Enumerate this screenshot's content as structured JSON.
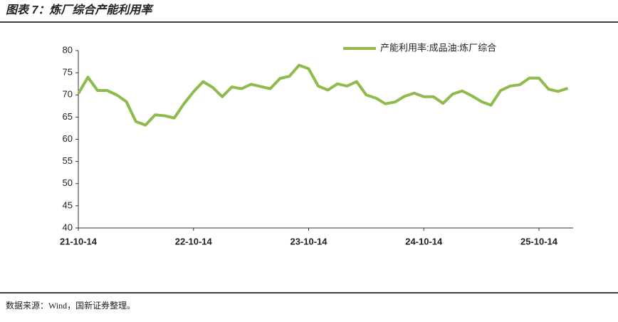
{
  "title": "图表 7：炼厂综合产能利用率",
  "source": "数据来源：Wind，国新证券整理。",
  "chart_data": {
    "type": "line",
    "categories": [
      "21-10-14",
      null,
      null,
      null,
      null,
      null,
      null,
      null,
      null,
      null,
      null,
      null,
      "22-10-14",
      null,
      null,
      null,
      null,
      null,
      null,
      null,
      null,
      null,
      null,
      null,
      "23-10-14",
      null,
      null,
      null,
      null,
      null,
      null,
      null,
      null,
      null,
      null,
      null,
      "24-10-14",
      null,
      null,
      null,
      null,
      null,
      null,
      null,
      null,
      null,
      null,
      null,
      "25-10-14",
      null,
      null,
      null
    ],
    "series": [
      {
        "name": "产能利用率:成品油:炼厂综合",
        "color": "#8fba4c",
        "values": [
          70.3,
          74.0,
          71.0,
          71.0,
          70.0,
          68.5,
          64.0,
          63.2,
          65.5,
          65.3,
          64.8,
          68.0,
          70.7,
          73.0,
          71.7,
          69.6,
          71.8,
          71.4,
          72.4,
          71.9,
          71.4,
          73.7,
          74.2,
          76.7,
          75.9,
          72.0,
          71.1,
          72.5,
          72.0,
          73.0,
          70.0,
          69.3,
          68.0,
          68.4,
          69.7,
          70.4,
          69.6,
          69.6,
          68.1,
          70.2,
          70.9,
          69.8,
          68.5,
          67.7,
          71.0,
          72.0,
          72.3,
          73.8,
          73.8,
          71.3,
          70.8,
          71.5
        ]
      }
    ],
    "ylim": [
      40,
      80
    ],
    "yticks": [
      40,
      45,
      50,
      55,
      60,
      65,
      70,
      75,
      80
    ],
    "legend": "top-right",
    "grid": false
  }
}
